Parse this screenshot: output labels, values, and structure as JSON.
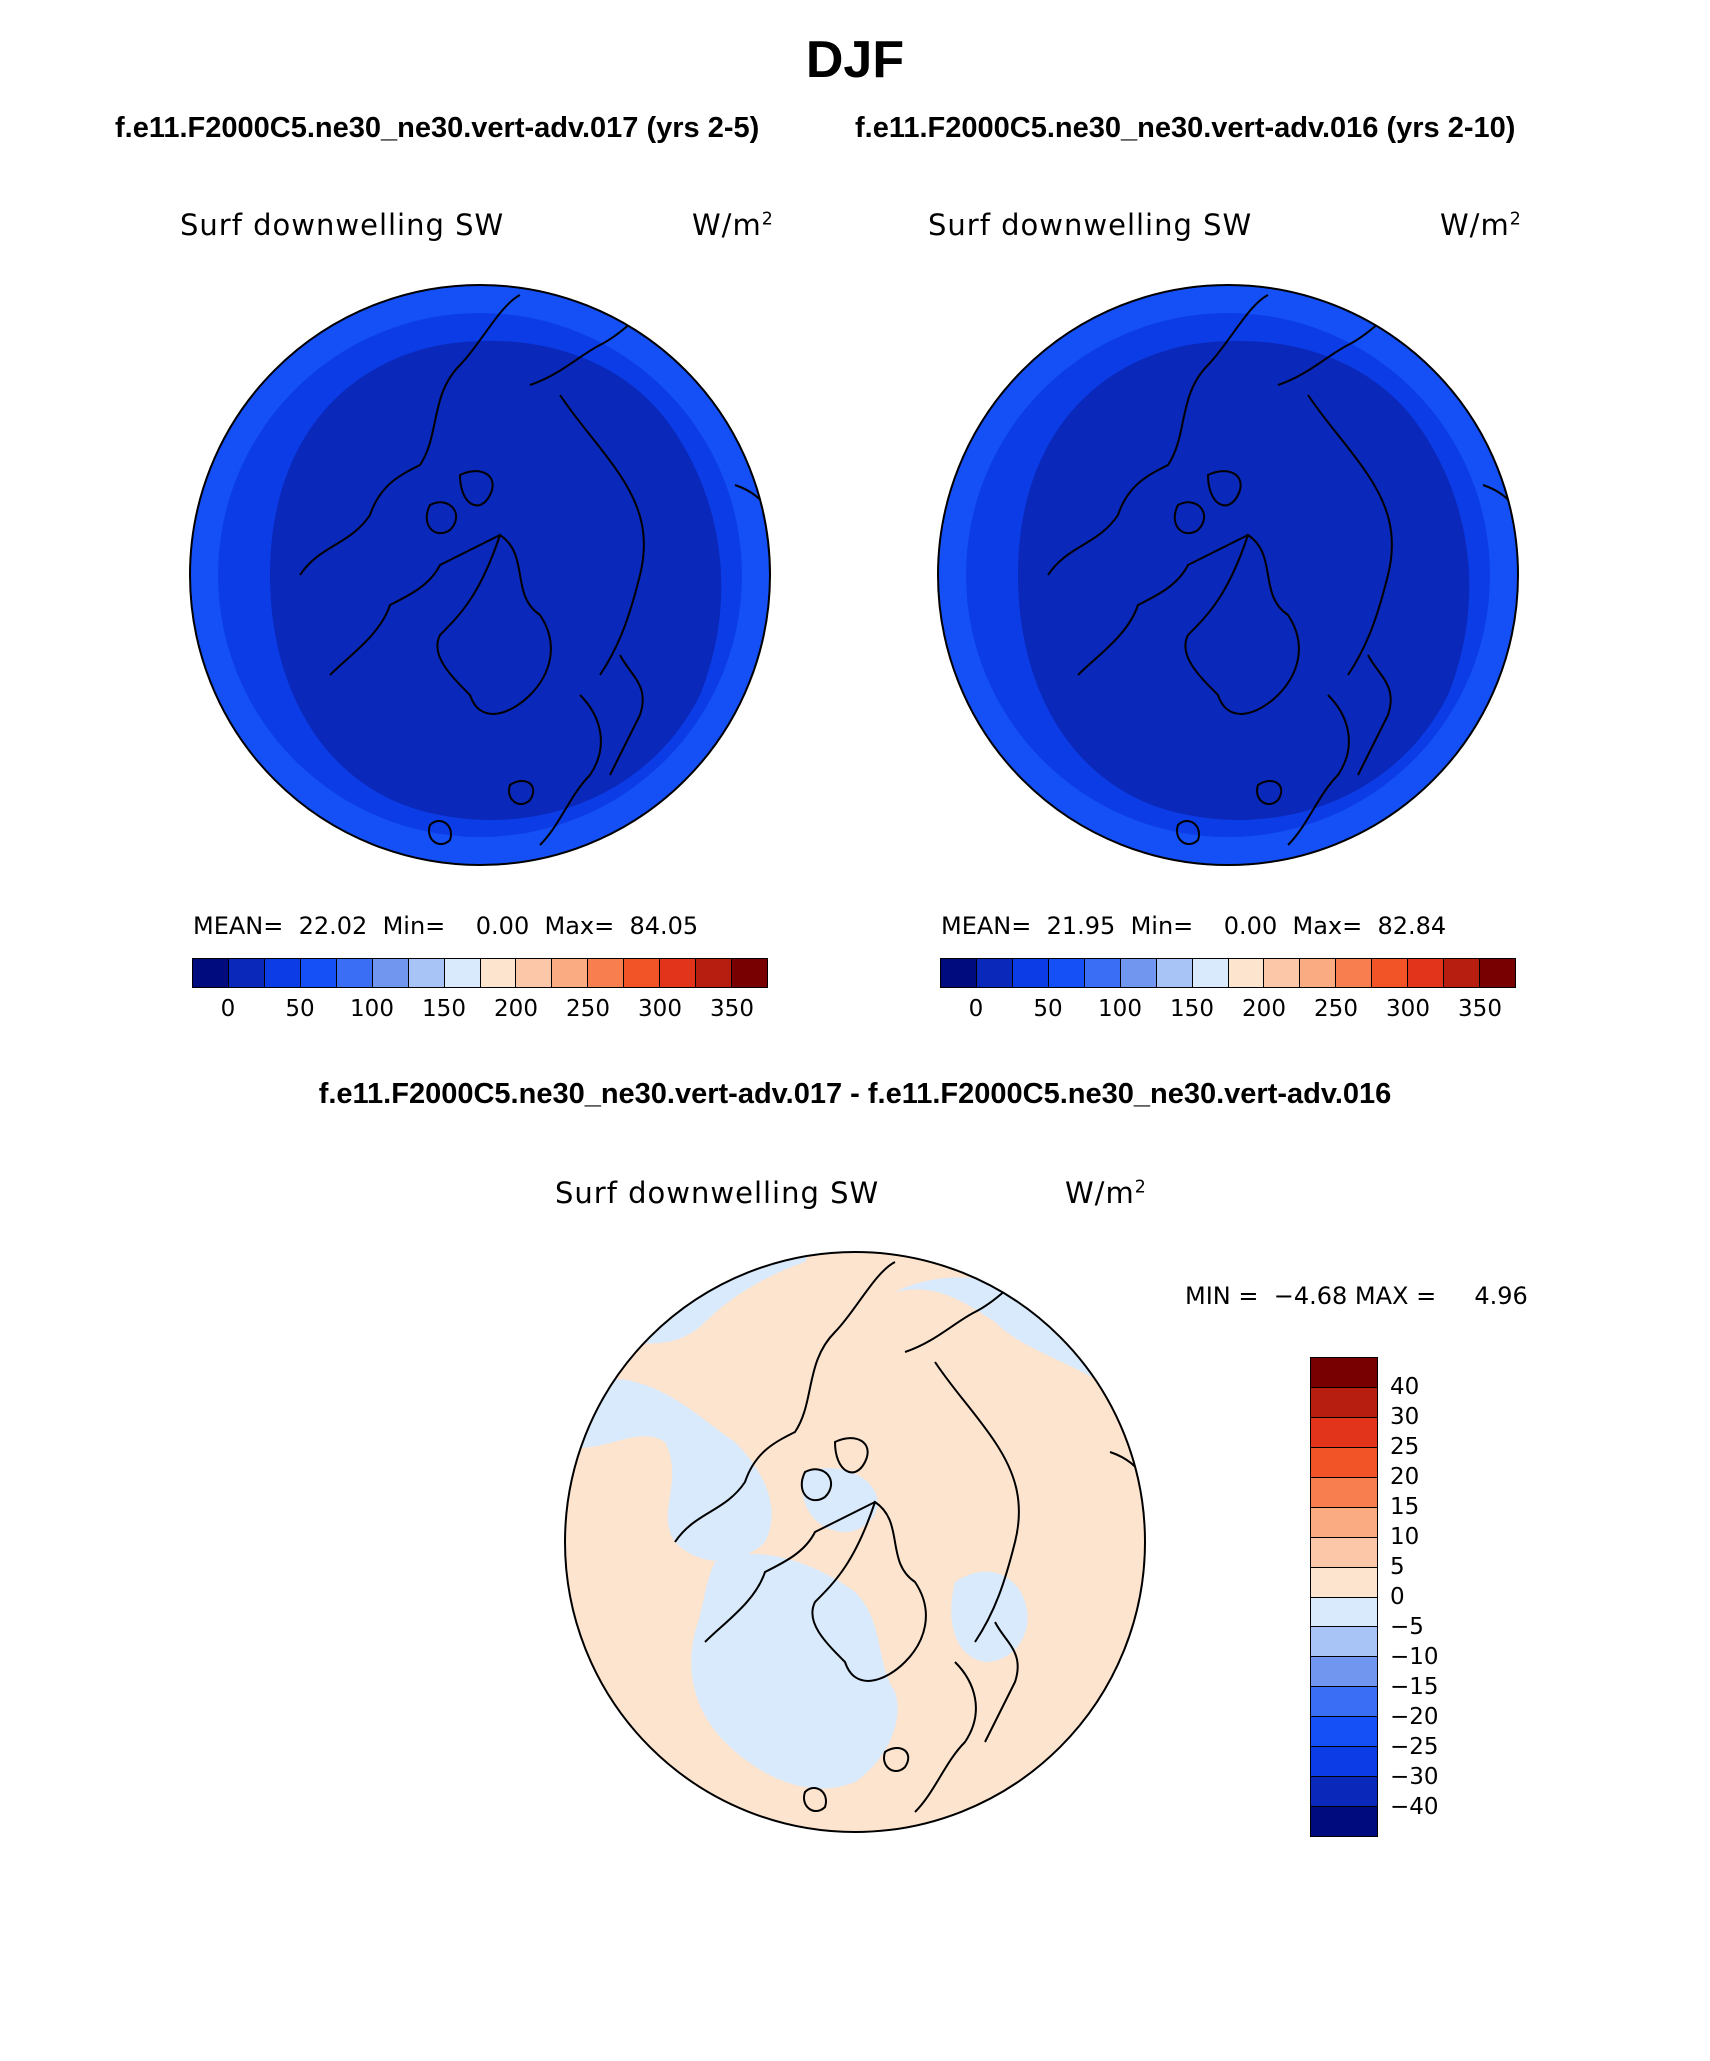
{
  "title": "DJF",
  "left_case": "f.e11.F2000C5.ne30_ne30.vert-adv.017 (yrs 2-5)",
  "right_case": "f.e11.F2000C5.ne30_ne30.vert-adv.016 (yrs 2-10)",
  "diff_title": "f.e11.F2000C5.ne30_ne30.vert-adv.017 - f.e11.F2000C5.ne30_ne30.vert-adv.016",
  "variable": "Surf downwelling SW",
  "units_base": "W/m",
  "units_exp": "2",
  "panels": [
    {
      "stats": "MEAN=  22.02  Min=    0.00  Max=  84.05"
    },
    {
      "stats": "MEAN=  21.95  Min=    0.00  Max=  82.84"
    }
  ],
  "diff_stats": "MIN =  −4.68 MAX =     4.96",
  "abs_colorbar": {
    "ticks": [
      "0",
      "50",
      "100",
      "150",
      "200",
      "250",
      "300",
      "350"
    ],
    "colors": [
      "#000c7d",
      "#0a28b9",
      "#0c3ce6",
      "#1450f5",
      "#3a6ef5",
      "#7096f0",
      "#a8c3f5",
      "#d8eafc",
      "#fde4cf",
      "#fcc6a8",
      "#fbab82",
      "#f87d4f",
      "#f25427",
      "#e2341a",
      "#b71e10",
      "#780000"
    ]
  },
  "diff_colorbar": {
    "labels": [
      "40",
      "30",
      "25",
      "20",
      "15",
      "10",
      "5",
      "0",
      "−5",
      "−10",
      "−15",
      "−20",
      "−25",
      "−30",
      "−40"
    ],
    "colors": [
      "#780000",
      "#b71e10",
      "#e2341a",
      "#f25427",
      "#f87d4f",
      "#fbab82",
      "#fcc6a8",
      "#fde4cf",
      "#d8eafc",
      "#a8c3f5",
      "#7096f0",
      "#3a6ef5",
      "#1450f5",
      "#0c3ce6",
      "#0a28b9",
      "#000c7d"
    ]
  },
  "map_colors": {
    "deep": "#0a28b9",
    "mid": "#0c3ce6",
    "outer": "#1450f5",
    "diff_pos": "#fde4cf",
    "diff_neg": "#d8eafc"
  }
}
